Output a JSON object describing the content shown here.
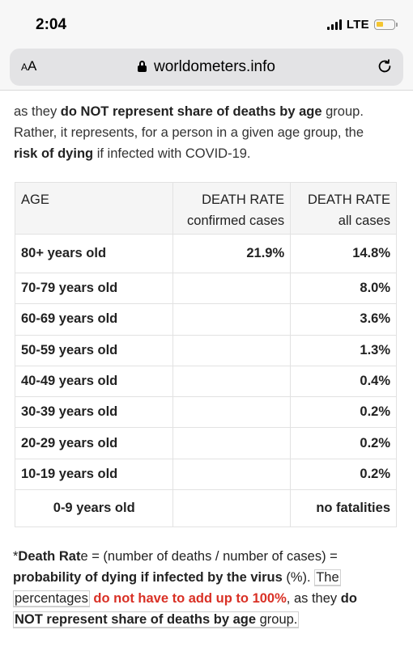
{
  "status_bar": {
    "time": "2:04",
    "network": "LTE",
    "battery_level": 0.3,
    "battery_color": "#f4c531"
  },
  "browser": {
    "text_size_button": "AA",
    "url": "worldometers.info",
    "lock_icon": "lock-icon",
    "reload_icon": "reload-icon"
  },
  "intro": {
    "line1_prefix": "as they ",
    "line1_bold": "do NOT represent share of deaths by age",
    "line1_suffix": " group.",
    "line2": "Rather, it represents, for a person in a given age group, the",
    "line3_bold": "risk of dying",
    "line3_suffix": " if infected with COVID-19."
  },
  "table": {
    "headers": {
      "age": "AGE",
      "confirmed_title": "DEATH RATE",
      "confirmed_sub": "confirmed cases",
      "all_title": "DEATH RATE",
      "all_sub": "all cases"
    },
    "rows": [
      {
        "age": "80+ years old",
        "confirmed": "21.9%",
        "all": "14.8%"
      },
      {
        "age": "70-79 years old",
        "confirmed": "",
        "all": "8.0%"
      },
      {
        "age": "60-69 years old",
        "confirmed": "",
        "all": "3.6%"
      },
      {
        "age": "50-59 years old",
        "confirmed": "",
        "all": "1.3%"
      },
      {
        "age": "40-49 years old",
        "confirmed": "",
        "all": "0.4%"
      },
      {
        "age": "30-39 years old",
        "confirmed": "",
        "all": "0.2%"
      },
      {
        "age": "20-29 years old",
        "confirmed": "",
        "all": "0.2%"
      },
      {
        "age": "10-19 years old",
        "confirmed": "",
        "all": "0.2%"
      },
      {
        "age": "0-9 years old",
        "confirmed": "",
        "all": "no fatalities"
      }
    ]
  },
  "note": {
    "star": "*",
    "bold1": "Death Rat",
    "e_letter": "e",
    "formula": " = (number of deaths / number of cases) =",
    "bold2": "probability of dying if infected by the virus",
    "pct": " (%). ",
    "the": "The",
    "percentages": "percentages",
    "red": "do not have to add up to 100%",
    "as_they": ", as they ",
    "do": "do",
    "bold3": "NOT represent share of deaths by age",
    "group": " group."
  },
  "colors": {
    "accent_red": "#d93025",
    "header_bg": "#f5f5f5"
  }
}
